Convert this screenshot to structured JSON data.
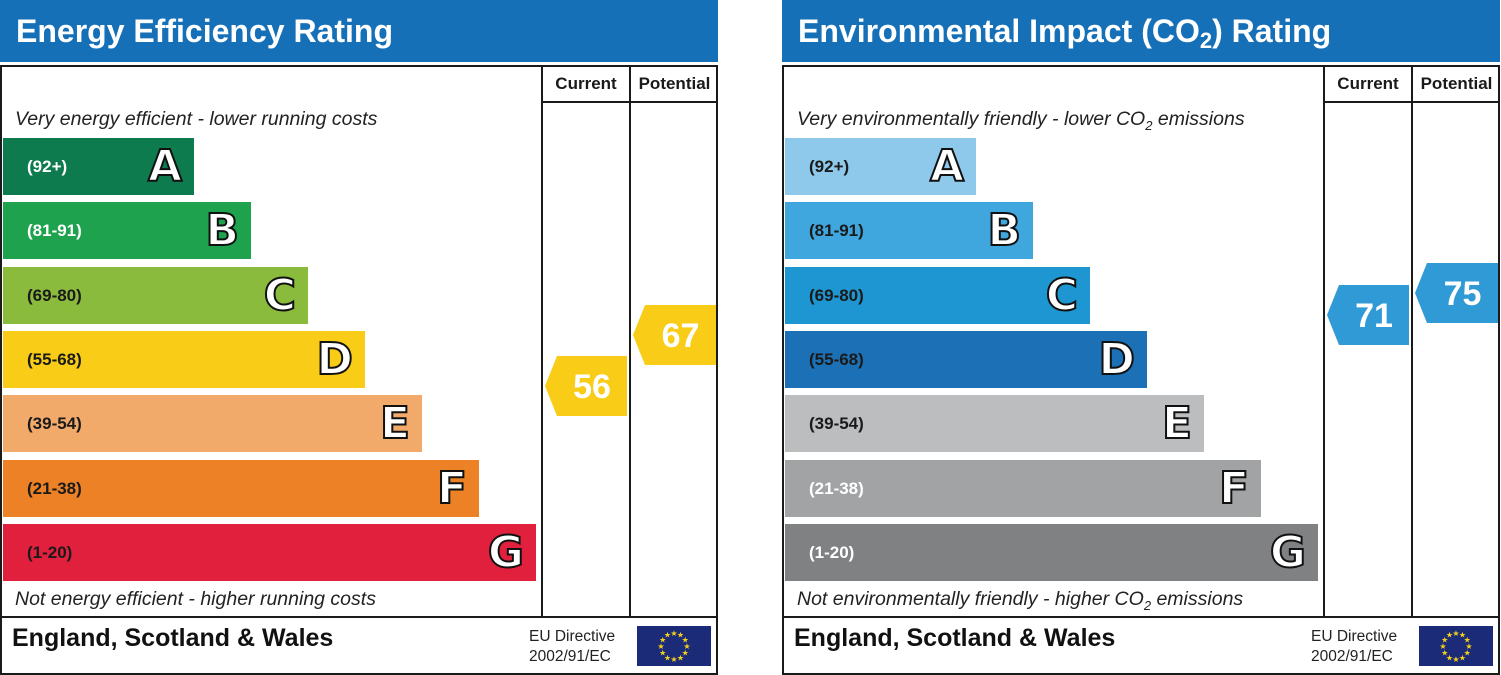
{
  "chart_data": [
    {
      "type": "bar",
      "title": "Energy Efficiency Rating",
      "columns": [
        "Current",
        "Potential"
      ],
      "top_label": "Very energy efficient - lower running costs",
      "bottom_label": "Not energy efficient - higher running costs",
      "bands": [
        {
          "letter": "A",
          "range": "(92+)",
          "color": "#0e7b4f",
          "text_color": "#ffffff"
        },
        {
          "letter": "B",
          "range": "(81-91)",
          "color": "#1ea24e",
          "text_color": "#ffffff"
        },
        {
          "letter": "C",
          "range": "(69-80)",
          "color": "#8bbb3d",
          "text_color": "#1a1a1a"
        },
        {
          "letter": "D",
          "range": "(55-68)",
          "color": "#f9cc17",
          "text_color": "#1a1a1a"
        },
        {
          "letter": "E",
          "range": "(39-54)",
          "color": "#f2aa6b",
          "text_color": "#1a1a1a"
        },
        {
          "letter": "F",
          "range": "(21-38)",
          "color": "#ec8125",
          "text_color": "#1a1a1a"
        },
        {
          "letter": "G",
          "range": "(1-20)",
          "color": "#e0203d",
          "text_color": "#1a1a1a"
        }
      ],
      "current": {
        "value": 56,
        "band": "D",
        "color": "#f9cc17"
      },
      "potential": {
        "value": 67,
        "band": "D",
        "color": "#f9cc17"
      },
      "region": "England, Scotland & Wales",
      "directive": [
        "EU Directive",
        "2002/91/EC"
      ]
    },
    {
      "type": "bar",
      "title_main": "Environmental Impact (CO",
      "title_sub": "2",
      "title_end": ") Rating",
      "columns": [
        "Current",
        "Potential"
      ],
      "top_label_main": "Very environmentally friendly - lower CO",
      "top_label_sub": "2",
      "top_label_end": " emissions",
      "bottom_label_main": "Not environmentally friendly - higher CO",
      "bottom_label_sub": "2",
      "bottom_label_end": " emissions",
      "bands": [
        {
          "letter": "A",
          "range": "(92+)",
          "color": "#8ec8ea",
          "text_color": "#1a1a1a"
        },
        {
          "letter": "B",
          "range": "(81-91)",
          "color": "#3fa6de",
          "text_color": "#1a1a1a"
        },
        {
          "letter": "C",
          "range": "(69-80)",
          "color": "#1e96d2",
          "text_color": "#1a1a1a"
        },
        {
          "letter": "D",
          "range": "(55-68)",
          "color": "#1c70b6",
          "text_color": "#1a1a1a"
        },
        {
          "letter": "E",
          "range": "(39-54)",
          "color": "#bcbdbf",
          "text_color": "#1a1a1a"
        },
        {
          "letter": "F",
          "range": "(21-38)",
          "color": "#a2a3a5",
          "text_color": "#ffffff"
        },
        {
          "letter": "G",
          "range": "(1-20)",
          "color": "#808183",
          "text_color": "#ffffff"
        }
      ],
      "current": {
        "value": 71,
        "band": "C",
        "color": "#2f9ad6"
      },
      "potential": {
        "value": 75,
        "band": "C",
        "color": "#2f9ad6"
      },
      "region": "England, Scotland & Wales",
      "directive": [
        "EU Directive",
        "2002/91/EC"
      ]
    }
  ]
}
